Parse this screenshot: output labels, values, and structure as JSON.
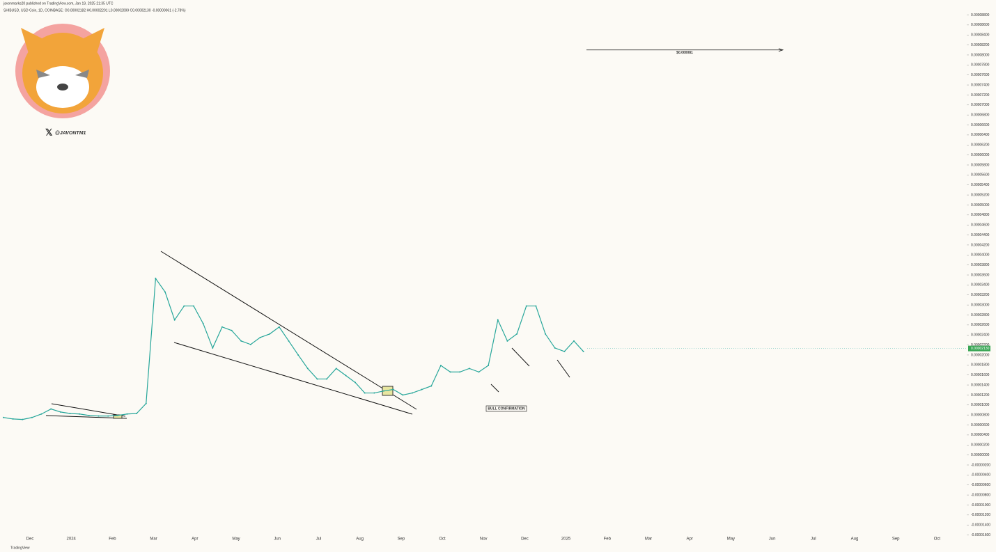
{
  "header": {
    "published": "javonmarks20 published on TradingView.com, Jan 19, 2025 21:35 UTC",
    "symbol": "SHIBUSD, USD Coin, 1D, COINBASE: O0.00002182 H0.00002201 L0.00002099 C0.00002130 -0.00000061 (-2.78%)",
    "handle": "@JAVONTM1",
    "footer": "TradingView"
  },
  "chart_data": {
    "type": "line",
    "annotations": {
      "target": "$0.000081",
      "bull": "BULL CONFIRMATION"
    },
    "time_labels": [
      "Dec",
      "2024",
      "Feb",
      "Mar",
      "Apr",
      "May",
      "Jun",
      "Jul",
      "Aug",
      "Sep",
      "Oct",
      "Nov",
      "Dec",
      "2025",
      "Feb",
      "Mar",
      "Apr",
      "May",
      "Jun",
      "Jul",
      "Aug",
      "Sep",
      "Oct"
    ],
    "series": [
      {
        "name": "SHIBUSD",
        "color": "#26a69a",
        "values": [
          7.5e-06,
          7.2e-06,
          7.1e-06,
          7.5e-06,
          8.2e-06,
          9.2e-06,
          8.6e-06,
          8.3e-06,
          8.2e-06,
          7.9e-06,
          7.8e-06,
          7.8e-06,
          7.9e-06,
          8.2e-06,
          8.3e-06,
          1.03e-05,
          3.53e-05,
          3.26e-05,
          2.7e-05,
          2.98e-05,
          2.98e-05,
          2.63e-05,
          2.14e-05,
          2.56e-05,
          2.49e-05,
          2.28e-05,
          2.21e-05,
          2.35e-05,
          2.42e-05,
          2.56e-05,
          2.28e-05,
          2e-05,
          1.73e-05,
          1.52e-05,
          1.52e-05,
          1.73e-05,
          1.59e-05,
          1.45e-05,
          1.24e-05,
          1.24e-05,
          1.28e-05,
          1.31e-05,
          1.2e-05,
          1.24e-05,
          1.31e-05,
          1.38e-05,
          1.79e-05,
          1.66e-05,
          1.66e-05,
          1.73e-05,
          1.66e-05,
          1.79e-05,
          2.7e-05,
          2.28e-05,
          2.42e-05,
          2.98e-05,
          2.98e-05,
          2.42e-05,
          2.14e-05,
          2.07e-05,
          2.28e-05,
          2.07e-05
        ]
      }
    ],
    "last_price": {
      "value": 2.13e-05,
      "label": "0.00002130"
    },
    "target_level": 8.1e-05,
    "ylim": [
      -1.62e-05,
      8.96e-05
    ],
    "yticks": [
      {
        "value": 8.8e-05,
        "label": "0.00008800"
      },
      {
        "value": 8.6e-05,
        "label": "0.00008600"
      },
      {
        "value": 8.4e-05,
        "label": "0.00008400"
      },
      {
        "value": 8.2e-05,
        "label": "0.00008200"
      },
      {
        "value": 8e-05,
        "label": "0.00008000"
      },
      {
        "value": 7.8e-05,
        "label": "0.00007800"
      },
      {
        "value": 7.6e-05,
        "label": "0.00007600"
      },
      {
        "value": 7.4e-05,
        "label": "0.00007400"
      },
      {
        "value": 7.2e-05,
        "label": "0.00007200"
      },
      {
        "value": 7e-05,
        "label": "0.00007000"
      },
      {
        "value": 6.8e-05,
        "label": "0.00006800"
      },
      {
        "value": 6.6e-05,
        "label": "0.00006600"
      },
      {
        "value": 6.4e-05,
        "label": "0.00006400"
      },
      {
        "value": 6.2e-05,
        "label": "0.00006200"
      },
      {
        "value": 6e-05,
        "label": "0.00006000"
      },
      {
        "value": 5.8e-05,
        "label": "0.00005800"
      },
      {
        "value": 5.6e-05,
        "label": "0.00005600"
      },
      {
        "value": 5.4e-05,
        "label": "0.00005400"
      },
      {
        "value": 5.2e-05,
        "label": "0.00005200"
      },
      {
        "value": 5e-05,
        "label": "0.00005000"
      },
      {
        "value": 4.8e-05,
        "label": "0.00004800"
      },
      {
        "value": 4.6e-05,
        "label": "0.00004600"
      },
      {
        "value": 4.4e-05,
        "label": "0.00004400"
      },
      {
        "value": 4.2e-05,
        "label": "0.00004200"
      },
      {
        "value": 4e-05,
        "label": "0.00004000"
      },
      {
        "value": 3.8e-05,
        "label": "0.00003800"
      },
      {
        "value": 3.6e-05,
        "label": "0.00003600"
      },
      {
        "value": 3.4e-05,
        "label": "0.00003400"
      },
      {
        "value": 3.2e-05,
        "label": "0.00003200"
      },
      {
        "value": 3e-05,
        "label": "0.00003000"
      },
      {
        "value": 2.8e-05,
        "label": "0.00002800"
      },
      {
        "value": 2.6e-05,
        "label": "0.00002600"
      },
      {
        "value": 2.4e-05,
        "label": "0.00002400"
      },
      {
        "value": 2.2e-05,
        "label": "0.00002200"
      },
      {
        "value": 2e-05,
        "label": "0.00002000"
      },
      {
        "value": 1.8e-05,
        "label": "0.00001800"
      },
      {
        "value": 1.6e-05,
        "label": "0.00001600"
      },
      {
        "value": 1.4e-05,
        "label": "0.00001400"
      },
      {
        "value": 1.2e-05,
        "label": "0.00001200"
      },
      {
        "value": 1e-05,
        "label": "0.00001000"
      },
      {
        "value": 8e-06,
        "label": "0.00000800"
      },
      {
        "value": 6e-06,
        "label": "0.00000600"
      },
      {
        "value": 4e-06,
        "label": "0.00000400"
      },
      {
        "value": 2e-06,
        "label": "0.00000200"
      },
      {
        "value": 0,
        "label": "0.00000000"
      },
      {
        "value": -2e-06,
        "label": "-0.00000200"
      },
      {
        "value": -4e-06,
        "label": "-0.00000400"
      },
      {
        "value": -6e-06,
        "label": "-0.00000600"
      },
      {
        "value": -8e-06,
        "label": "-0.00000800"
      },
      {
        "value": -1e-05,
        "label": "-0.00001000"
      },
      {
        "value": -1.2e-05,
        "label": "-0.00001200"
      },
      {
        "value": -1.4e-05,
        "label": "-0.00001400"
      },
      {
        "value": -1.6e-05,
        "label": "-0.00001600"
      }
    ]
  }
}
